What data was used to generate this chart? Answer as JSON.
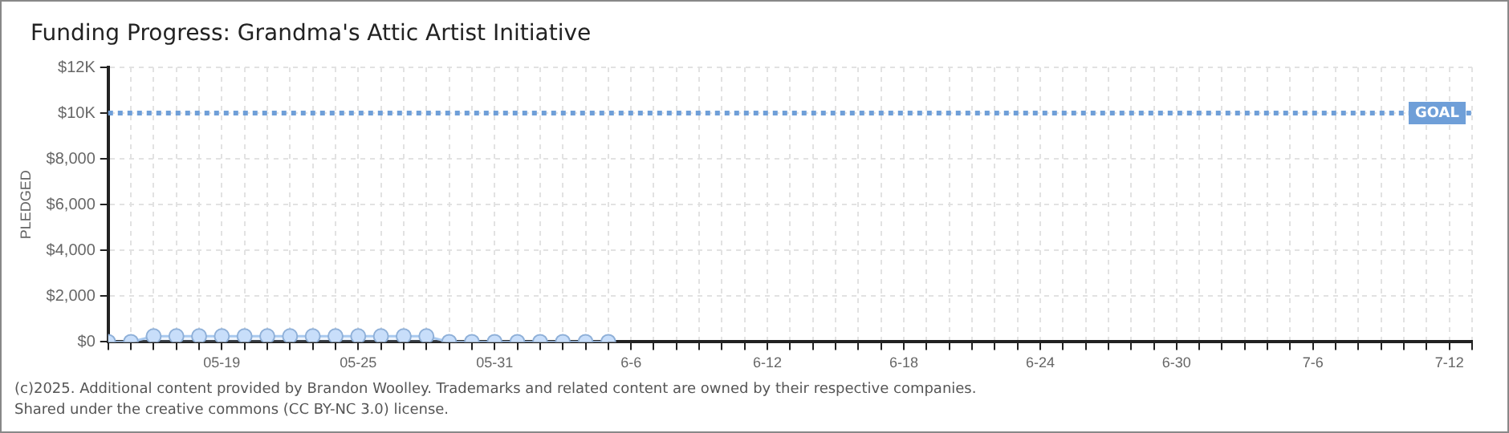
{
  "chart_data": {
    "type": "area",
    "title": "Funding Progress: Grandma's Attic Artist Initiative",
    "ylabel": "PLEDGED",
    "x": [
      "--05-14",
      "--05-15",
      "--05-16",
      "--05-17",
      "--05-18",
      "--05-19",
      "--05-20",
      "--05-21",
      "--05-22",
      "--05-23",
      "--05-24",
      "--05-25",
      "--05-26",
      "--05-27",
      "--05-28",
      "--05-29",
      "--05-30",
      "--05-31",
      "--06-01",
      "--06-02",
      "--06-03",
      "--06-04",
      "--06-05"
    ],
    "series": [
      {
        "color": "#a9c9ef",
        "values": [
          0,
          0,
          250,
          250,
          250,
          250,
          250,
          250,
          250,
          250,
          250,
          250,
          250,
          250,
          250,
          0,
          0,
          0,
          0,
          0,
          0,
          0,
          0
        ]
      }
    ],
    "xlim": [
      "--05-14",
      "--07-13"
    ],
    "xticks": [
      {
        "value": "--05-14",
        "label": null
      },
      {
        "value": "--05-15",
        "label": null
      },
      {
        "value": "--05-16",
        "label": null
      },
      {
        "value": "--05-17",
        "label": null
      },
      {
        "value": "--05-18",
        "label": null
      },
      {
        "value": "--05-19",
        "label": "05-19"
      },
      {
        "value": "--05-20",
        "label": null
      },
      {
        "value": "--05-21",
        "label": null
      },
      {
        "value": "--05-22",
        "label": null
      },
      {
        "value": "--05-23",
        "label": null
      },
      {
        "value": "--05-24",
        "label": null
      },
      {
        "value": "--05-25",
        "label": "05-25"
      },
      {
        "value": "--05-26",
        "label": null
      },
      {
        "value": "--05-27",
        "label": null
      },
      {
        "value": "--05-28",
        "label": null
      },
      {
        "value": "--05-29",
        "label": null
      },
      {
        "value": "--05-30",
        "label": null
      },
      {
        "value": "--05-31",
        "label": "05-31"
      },
      {
        "value": "--06-01",
        "label": null
      },
      {
        "value": "--06-02",
        "label": null
      },
      {
        "value": "--06-03",
        "label": null
      },
      {
        "value": "--06-04",
        "label": null
      },
      {
        "value": "--06-05",
        "label": null
      },
      {
        "value": "--06-06",
        "label": "6-6"
      },
      {
        "value": "--06-07",
        "label": null
      },
      {
        "value": "--06-08",
        "label": null
      },
      {
        "value": "--06-09",
        "label": null
      },
      {
        "value": "--06-10",
        "label": null
      },
      {
        "value": "--06-11",
        "label": null
      },
      {
        "value": "--06-12",
        "label": "6-12"
      },
      {
        "value": "--06-13",
        "label": null
      },
      {
        "value": "--06-14",
        "label": null
      },
      {
        "value": "--06-15",
        "label": null
      },
      {
        "value": "--06-16",
        "label": null
      },
      {
        "value": "--06-17",
        "label": null
      },
      {
        "value": "--06-18",
        "label": "6-18"
      },
      {
        "value": "--06-19",
        "label": null
      },
      {
        "value": "--06-20",
        "label": null
      },
      {
        "value": "--06-21",
        "label": null
      },
      {
        "value": "--06-22",
        "label": null
      },
      {
        "value": "--06-23",
        "label": null
      },
      {
        "value": "--06-24",
        "label": "6-24"
      },
      {
        "value": "--06-25",
        "label": null
      },
      {
        "value": "--06-26",
        "label": null
      },
      {
        "value": "--06-27",
        "label": null
      },
      {
        "value": "--06-28",
        "label": null
      },
      {
        "value": "--06-29",
        "label": null
      },
      {
        "value": "--06-30",
        "label": "6-30"
      },
      {
        "value": "--07-01",
        "label": null
      },
      {
        "value": "--07-02",
        "label": null
      },
      {
        "value": "--07-03",
        "label": null
      },
      {
        "value": "--07-04",
        "label": null
      },
      {
        "value": "--07-05",
        "label": null
      },
      {
        "value": "--07-06",
        "label": "7-6"
      },
      {
        "value": "--07-07",
        "label": null
      },
      {
        "value": "--07-08",
        "label": null
      },
      {
        "value": "--07-09",
        "label": null
      },
      {
        "value": "--07-10",
        "label": null
      },
      {
        "value": "--07-11",
        "label": null
      },
      {
        "value": "--07-12",
        "label": "7-12"
      },
      {
        "value": "--07-13",
        "label": null
      }
    ],
    "ylim": [
      0,
      12000
    ],
    "yticks": [
      {
        "value": 0,
        "label": "$0"
      },
      {
        "value": 2000,
        "label": "$2,000"
      },
      {
        "value": 4000,
        "label": "$4,000"
      },
      {
        "value": 6000,
        "label": "$6,000"
      },
      {
        "value": 8000,
        "label": "$8,000"
      },
      {
        "value": 10000,
        "label": "$10K"
      },
      {
        "value": 12000,
        "label": "$12K"
      }
    ],
    "ref_lines": [
      {
        "axis": "y",
        "value": 10000,
        "label": "GOAL",
        "color": "#6f9fd8",
        "line_style": "dotted"
      }
    ],
    "grid": true,
    "legend": false,
    "marker": "circle",
    "line_style": "solid",
    "annotations": [
      "(c)2025. Additional content provided by Brandon Woolley. Trademarks and related content are owned by their respective companies.",
      "Shared under the creative commons (CC BY-NC 3.0) license."
    ]
  }
}
